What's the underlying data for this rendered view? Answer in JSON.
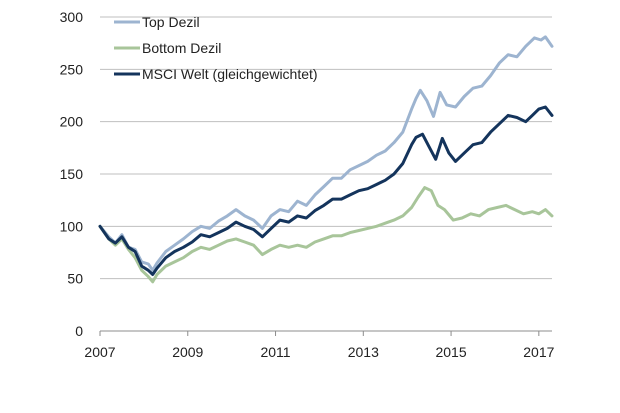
{
  "chart_data": {
    "type": "line",
    "title": "",
    "xlabel": "",
    "ylabel": "",
    "xlim": [
      2007.0,
      2017.3
    ],
    "ylim": [
      0,
      300
    ],
    "xticks": [
      2007,
      2009,
      2011,
      2013,
      2015,
      2017
    ],
    "xtick_labels": [
      "2007",
      "2009",
      "2011",
      "2013",
      "2015",
      "2017"
    ],
    "yticks": [
      0,
      50,
      100,
      150,
      200,
      250,
      300
    ],
    "ytick_labels": [
      "0",
      "50",
      "100",
      "150",
      "200",
      "250",
      "300"
    ],
    "grid": "horizontal",
    "legend_position": "top-left",
    "series": [
      {
        "name": "Top Dezil",
        "color": "#9db4d0",
        "points": [
          [
            2007.0,
            100
          ],
          [
            2007.2,
            90
          ],
          [
            2007.35,
            84
          ],
          [
            2007.5,
            92
          ],
          [
            2007.65,
            80
          ],
          [
            2007.8,
            78
          ],
          [
            2007.95,
            66
          ],
          [
            2008.1,
            64
          ],
          [
            2008.2,
            58
          ],
          [
            2008.3,
            65
          ],
          [
            2008.5,
            76
          ],
          [
            2008.7,
            82
          ],
          [
            2008.9,
            88
          ],
          [
            2009.1,
            95
          ],
          [
            2009.3,
            100
          ],
          [
            2009.5,
            98
          ],
          [
            2009.7,
            105
          ],
          [
            2009.9,
            110
          ],
          [
            2010.1,
            116
          ],
          [
            2010.3,
            110
          ],
          [
            2010.5,
            106
          ],
          [
            2010.7,
            98
          ],
          [
            2010.9,
            110
          ],
          [
            2011.1,
            116
          ],
          [
            2011.3,
            114
          ],
          [
            2011.5,
            124
          ],
          [
            2011.7,
            120
          ],
          [
            2011.9,
            130
          ],
          [
            2012.1,
            138
          ],
          [
            2012.3,
            146
          ],
          [
            2012.5,
            146
          ],
          [
            2012.7,
            154
          ],
          [
            2012.9,
            158
          ],
          [
            2013.1,
            162
          ],
          [
            2013.3,
            168
          ],
          [
            2013.5,
            172
          ],
          [
            2013.7,
            180
          ],
          [
            2013.9,
            190
          ],
          [
            2014.1,
            212
          ],
          [
            2014.2,
            222
          ],
          [
            2014.3,
            230
          ],
          [
            2014.45,
            220
          ],
          [
            2014.6,
            205
          ],
          [
            2014.75,
            228
          ],
          [
            2014.9,
            216
          ],
          [
            2015.1,
            214
          ],
          [
            2015.3,
            224
          ],
          [
            2015.5,
            232
          ],
          [
            2015.7,
            234
          ],
          [
            2015.9,
            244
          ],
          [
            2016.1,
            256
          ],
          [
            2016.3,
            264
          ],
          [
            2016.5,
            262
          ],
          [
            2016.7,
            272
          ],
          [
            2016.9,
            280
          ],
          [
            2017.05,
            278
          ],
          [
            2017.15,
            281
          ],
          [
            2017.3,
            272
          ]
        ]
      },
      {
        "name": "Bottom Dezil",
        "color": "#a8c59a",
        "points": [
          [
            2007.0,
            100
          ],
          [
            2007.2,
            88
          ],
          [
            2007.35,
            82
          ],
          [
            2007.5,
            88
          ],
          [
            2007.65,
            78
          ],
          [
            2007.8,
            70
          ],
          [
            2007.95,
            58
          ],
          [
            2008.1,
            52
          ],
          [
            2008.2,
            47
          ],
          [
            2008.3,
            54
          ],
          [
            2008.5,
            62
          ],
          [
            2008.7,
            66
          ],
          [
            2008.9,
            70
          ],
          [
            2009.1,
            76
          ],
          [
            2009.3,
            80
          ],
          [
            2009.5,
            78
          ],
          [
            2009.7,
            82
          ],
          [
            2009.9,
            86
          ],
          [
            2010.1,
            88
          ],
          [
            2010.3,
            85
          ],
          [
            2010.5,
            82
          ],
          [
            2010.7,
            73
          ],
          [
            2010.9,
            78
          ],
          [
            2011.1,
            82
          ],
          [
            2011.3,
            80
          ],
          [
            2011.5,
            82
          ],
          [
            2011.7,
            80
          ],
          [
            2011.9,
            85
          ],
          [
            2012.1,
            88
          ],
          [
            2012.3,
            91
          ],
          [
            2012.5,
            91
          ],
          [
            2012.7,
            94
          ],
          [
            2012.9,
            96
          ],
          [
            2013.1,
            98
          ],
          [
            2013.3,
            100
          ],
          [
            2013.5,
            103
          ],
          [
            2013.7,
            106
          ],
          [
            2013.9,
            110
          ],
          [
            2014.1,
            118
          ],
          [
            2014.25,
            128
          ],
          [
            2014.4,
            137
          ],
          [
            2014.55,
            134
          ],
          [
            2014.7,
            120
          ],
          [
            2014.85,
            116
          ],
          [
            2015.05,
            106
          ],
          [
            2015.25,
            108
          ],
          [
            2015.45,
            112
          ],
          [
            2015.65,
            110
          ],
          [
            2015.85,
            116
          ],
          [
            2016.05,
            118
          ],
          [
            2016.25,
            120
          ],
          [
            2016.45,
            116
          ],
          [
            2016.65,
            112
          ],
          [
            2016.85,
            114
          ],
          [
            2017.0,
            112
          ],
          [
            2017.15,
            116
          ],
          [
            2017.3,
            110
          ]
        ]
      },
      {
        "name": "MSCI Welt (gleichgewichtet)",
        "color": "#14345c",
        "points": [
          [
            2007.0,
            100
          ],
          [
            2007.2,
            88
          ],
          [
            2007.35,
            84
          ],
          [
            2007.5,
            90
          ],
          [
            2007.65,
            80
          ],
          [
            2007.8,
            76
          ],
          [
            2007.95,
            62
          ],
          [
            2008.1,
            58
          ],
          [
            2008.2,
            54
          ],
          [
            2008.3,
            60
          ],
          [
            2008.5,
            70
          ],
          [
            2008.7,
            76
          ],
          [
            2008.9,
            80
          ],
          [
            2009.1,
            85
          ],
          [
            2009.3,
            92
          ],
          [
            2009.5,
            90
          ],
          [
            2009.7,
            94
          ],
          [
            2009.9,
            98
          ],
          [
            2010.1,
            104
          ],
          [
            2010.3,
            100
          ],
          [
            2010.5,
            97
          ],
          [
            2010.7,
            90
          ],
          [
            2010.9,
            98
          ],
          [
            2011.1,
            106
          ],
          [
            2011.3,
            104
          ],
          [
            2011.5,
            110
          ],
          [
            2011.7,
            108
          ],
          [
            2011.9,
            115
          ],
          [
            2012.1,
            120
          ],
          [
            2012.3,
            126
          ],
          [
            2012.5,
            126
          ],
          [
            2012.7,
            130
          ],
          [
            2012.9,
            134
          ],
          [
            2013.1,
            136
          ],
          [
            2013.3,
            140
          ],
          [
            2013.5,
            144
          ],
          [
            2013.7,
            150
          ],
          [
            2013.9,
            160
          ],
          [
            2014.1,
            178
          ],
          [
            2014.2,
            185
          ],
          [
            2014.35,
            188
          ],
          [
            2014.5,
            176
          ],
          [
            2014.65,
            164
          ],
          [
            2014.8,
            184
          ],
          [
            2014.95,
            170
          ],
          [
            2015.1,
            162
          ],
          [
            2015.3,
            170
          ],
          [
            2015.5,
            178
          ],
          [
            2015.7,
            180
          ],
          [
            2015.9,
            190
          ],
          [
            2016.1,
            198
          ],
          [
            2016.3,
            206
          ],
          [
            2016.5,
            204
          ],
          [
            2016.7,
            200
          ],
          [
            2016.85,
            206
          ],
          [
            2017.0,
            212
          ],
          [
            2017.15,
            214
          ],
          [
            2017.3,
            206
          ]
        ]
      }
    ]
  }
}
